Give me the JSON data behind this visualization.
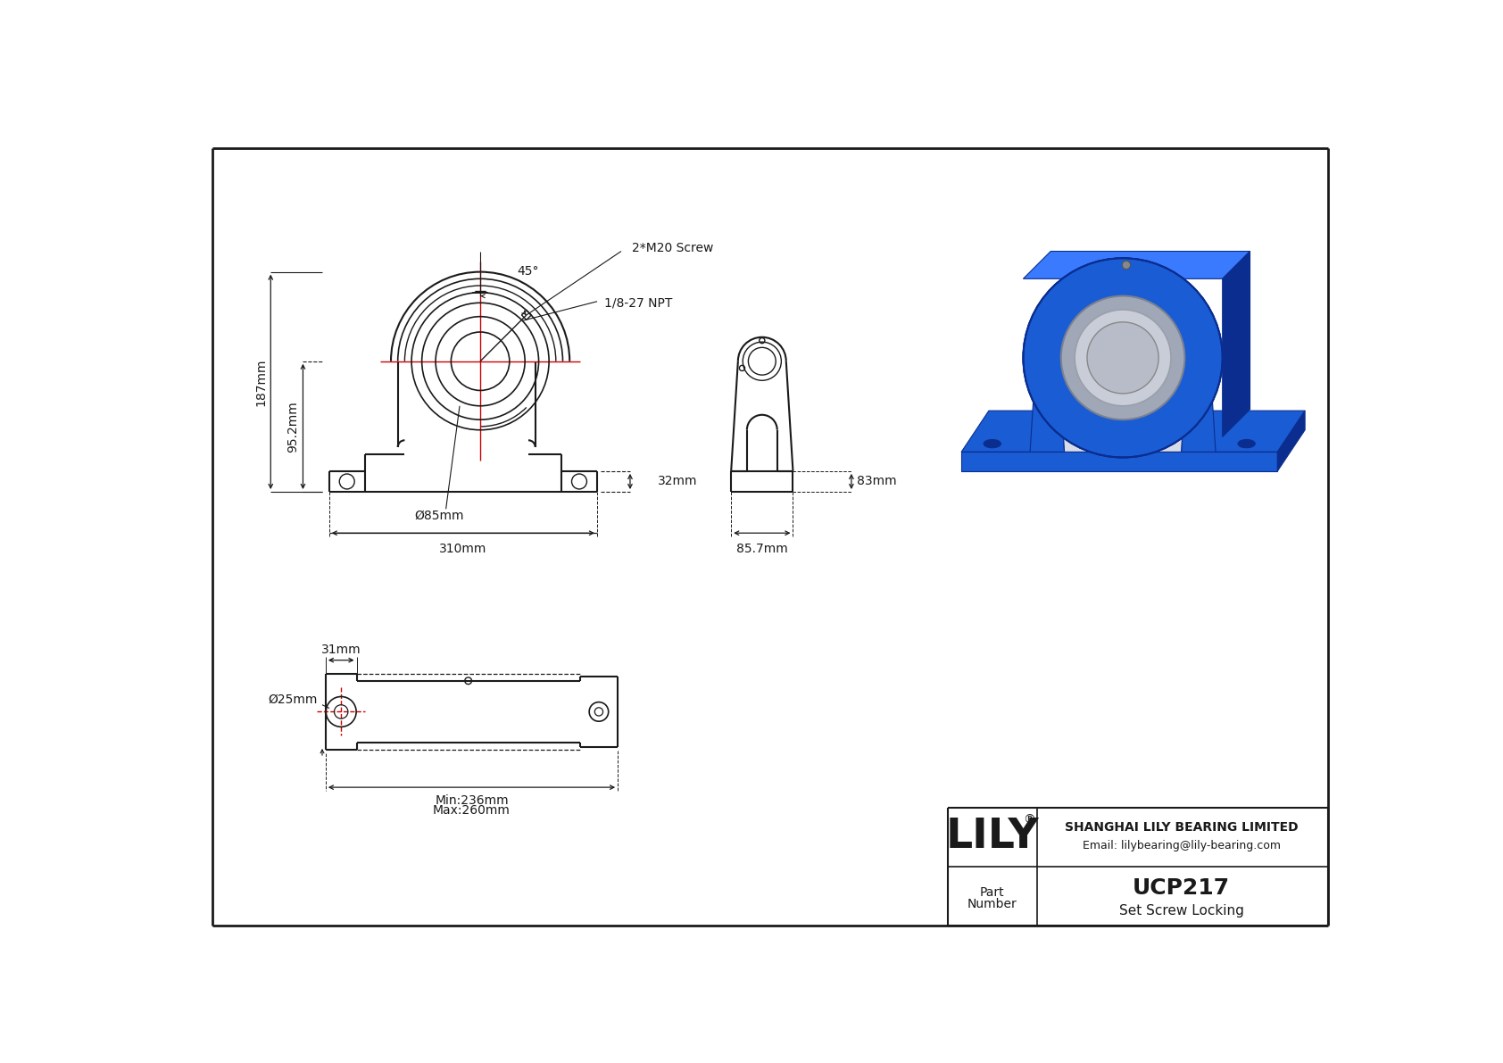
{
  "bg_color": "#ffffff",
  "line_color": "#1a1a1a",
  "red_color": "#cc0000",
  "title": "UCP217",
  "subtitle": "Set Screw Locking",
  "company": "SHANGHAI LILY BEARING LIMITED",
  "email": "Email: lilybearing@lily-bearing.com",
  "part_label": "Part\nNumber",
  "lily_text": "LILY",
  "dims": {
    "total_height": "187mm",
    "shaft_height": "95.2mm",
    "bore": "Ø85mm",
    "total_width": "310mm",
    "side_width": "85.7mm",
    "side_depth": "83mm",
    "bolt_height": "32mm",
    "angle": "45°",
    "screw": "2*M20 Screw",
    "npt": "1/8-27 NPT",
    "bore_top": "Ø25mm",
    "bolt_dim": "31mm",
    "min_len": "Min:236mm",
    "max_len": "Max:260mm"
  }
}
